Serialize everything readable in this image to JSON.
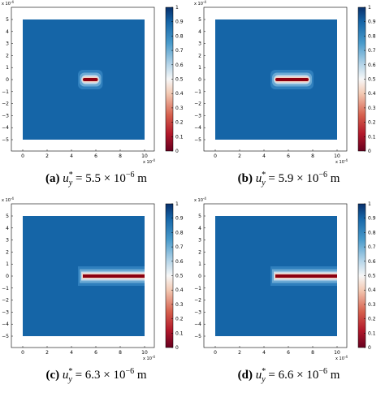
{
  "palette": {
    "field_blue": "#1565a7",
    "colorbar_top": "#08306b",
    "colorbar_mid": "#f7f7f7",
    "colorbar_bottom": "#67001f",
    "crack_core": "#8b0010"
  },
  "panels": [
    {
      "label": "(a)",
      "math_var": "u",
      "math_sup": "*",
      "math_sub": "y",
      "math_rhs": "= 5.5 × 10",
      "math_exp": "−6",
      "math_unit": "m",
      "crack_start_x": 5.0,
      "crack_end_x": 6.1,
      "x_multiplier": "x 10",
      "x_multiplier_exp": "-4",
      "y_multiplier": "x 10",
      "y_multiplier_exp": "-4"
    },
    {
      "label": "(b)",
      "math_var": "u",
      "math_sup": "*",
      "math_sub": "y",
      "math_rhs": "= 5.9 × 10",
      "math_exp": "−6",
      "math_unit": "m",
      "crack_start_x": 5.0,
      "crack_end_x": 7.6,
      "x_multiplier": "x 10",
      "x_multiplier_exp": "-4",
      "y_multiplier": "x 10",
      "y_multiplier_exp": "-4"
    },
    {
      "label": "(c)",
      "math_var": "u",
      "math_sup": "*",
      "math_sub": "y",
      "math_rhs": "= 6.3 × 10",
      "math_exp": "−6",
      "math_unit": "m",
      "crack_start_x": 5.0,
      "crack_end_x": 10.0,
      "x_multiplier": "x 10",
      "x_multiplier_exp": "-4",
      "y_multiplier": "x 10",
      "y_multiplier_exp": "-4"
    },
    {
      "label": "(d)",
      "math_var": "u",
      "math_sup": "*",
      "math_sub": "y",
      "math_rhs": "= 6.6 × 10",
      "math_exp": "−6",
      "math_unit": "m",
      "crack_start_x": 5.0,
      "crack_end_x": 10.0,
      "x_multiplier": "x 10",
      "x_multiplier_exp": "-4",
      "y_multiplier": "x 10",
      "y_multiplier_exp": "-4"
    }
  ],
  "axes": {
    "x_ticks": [
      "0",
      "2",
      "4",
      "6",
      "8",
      "10"
    ],
    "y_ticks": [
      "5",
      "4",
      "3",
      "2",
      "1",
      "0",
      "−1",
      "−2",
      "−3",
      "−4",
      "−5"
    ],
    "xlim": [
      0,
      10
    ],
    "ylim": [
      -5,
      5
    ]
  },
  "colorbar": {
    "ticks": [
      "1",
      "0.9",
      "0.8",
      "0.7",
      "0.6",
      "0.5",
      "0.4",
      "0.3",
      "0.2",
      "0.1",
      "0"
    ]
  }
}
